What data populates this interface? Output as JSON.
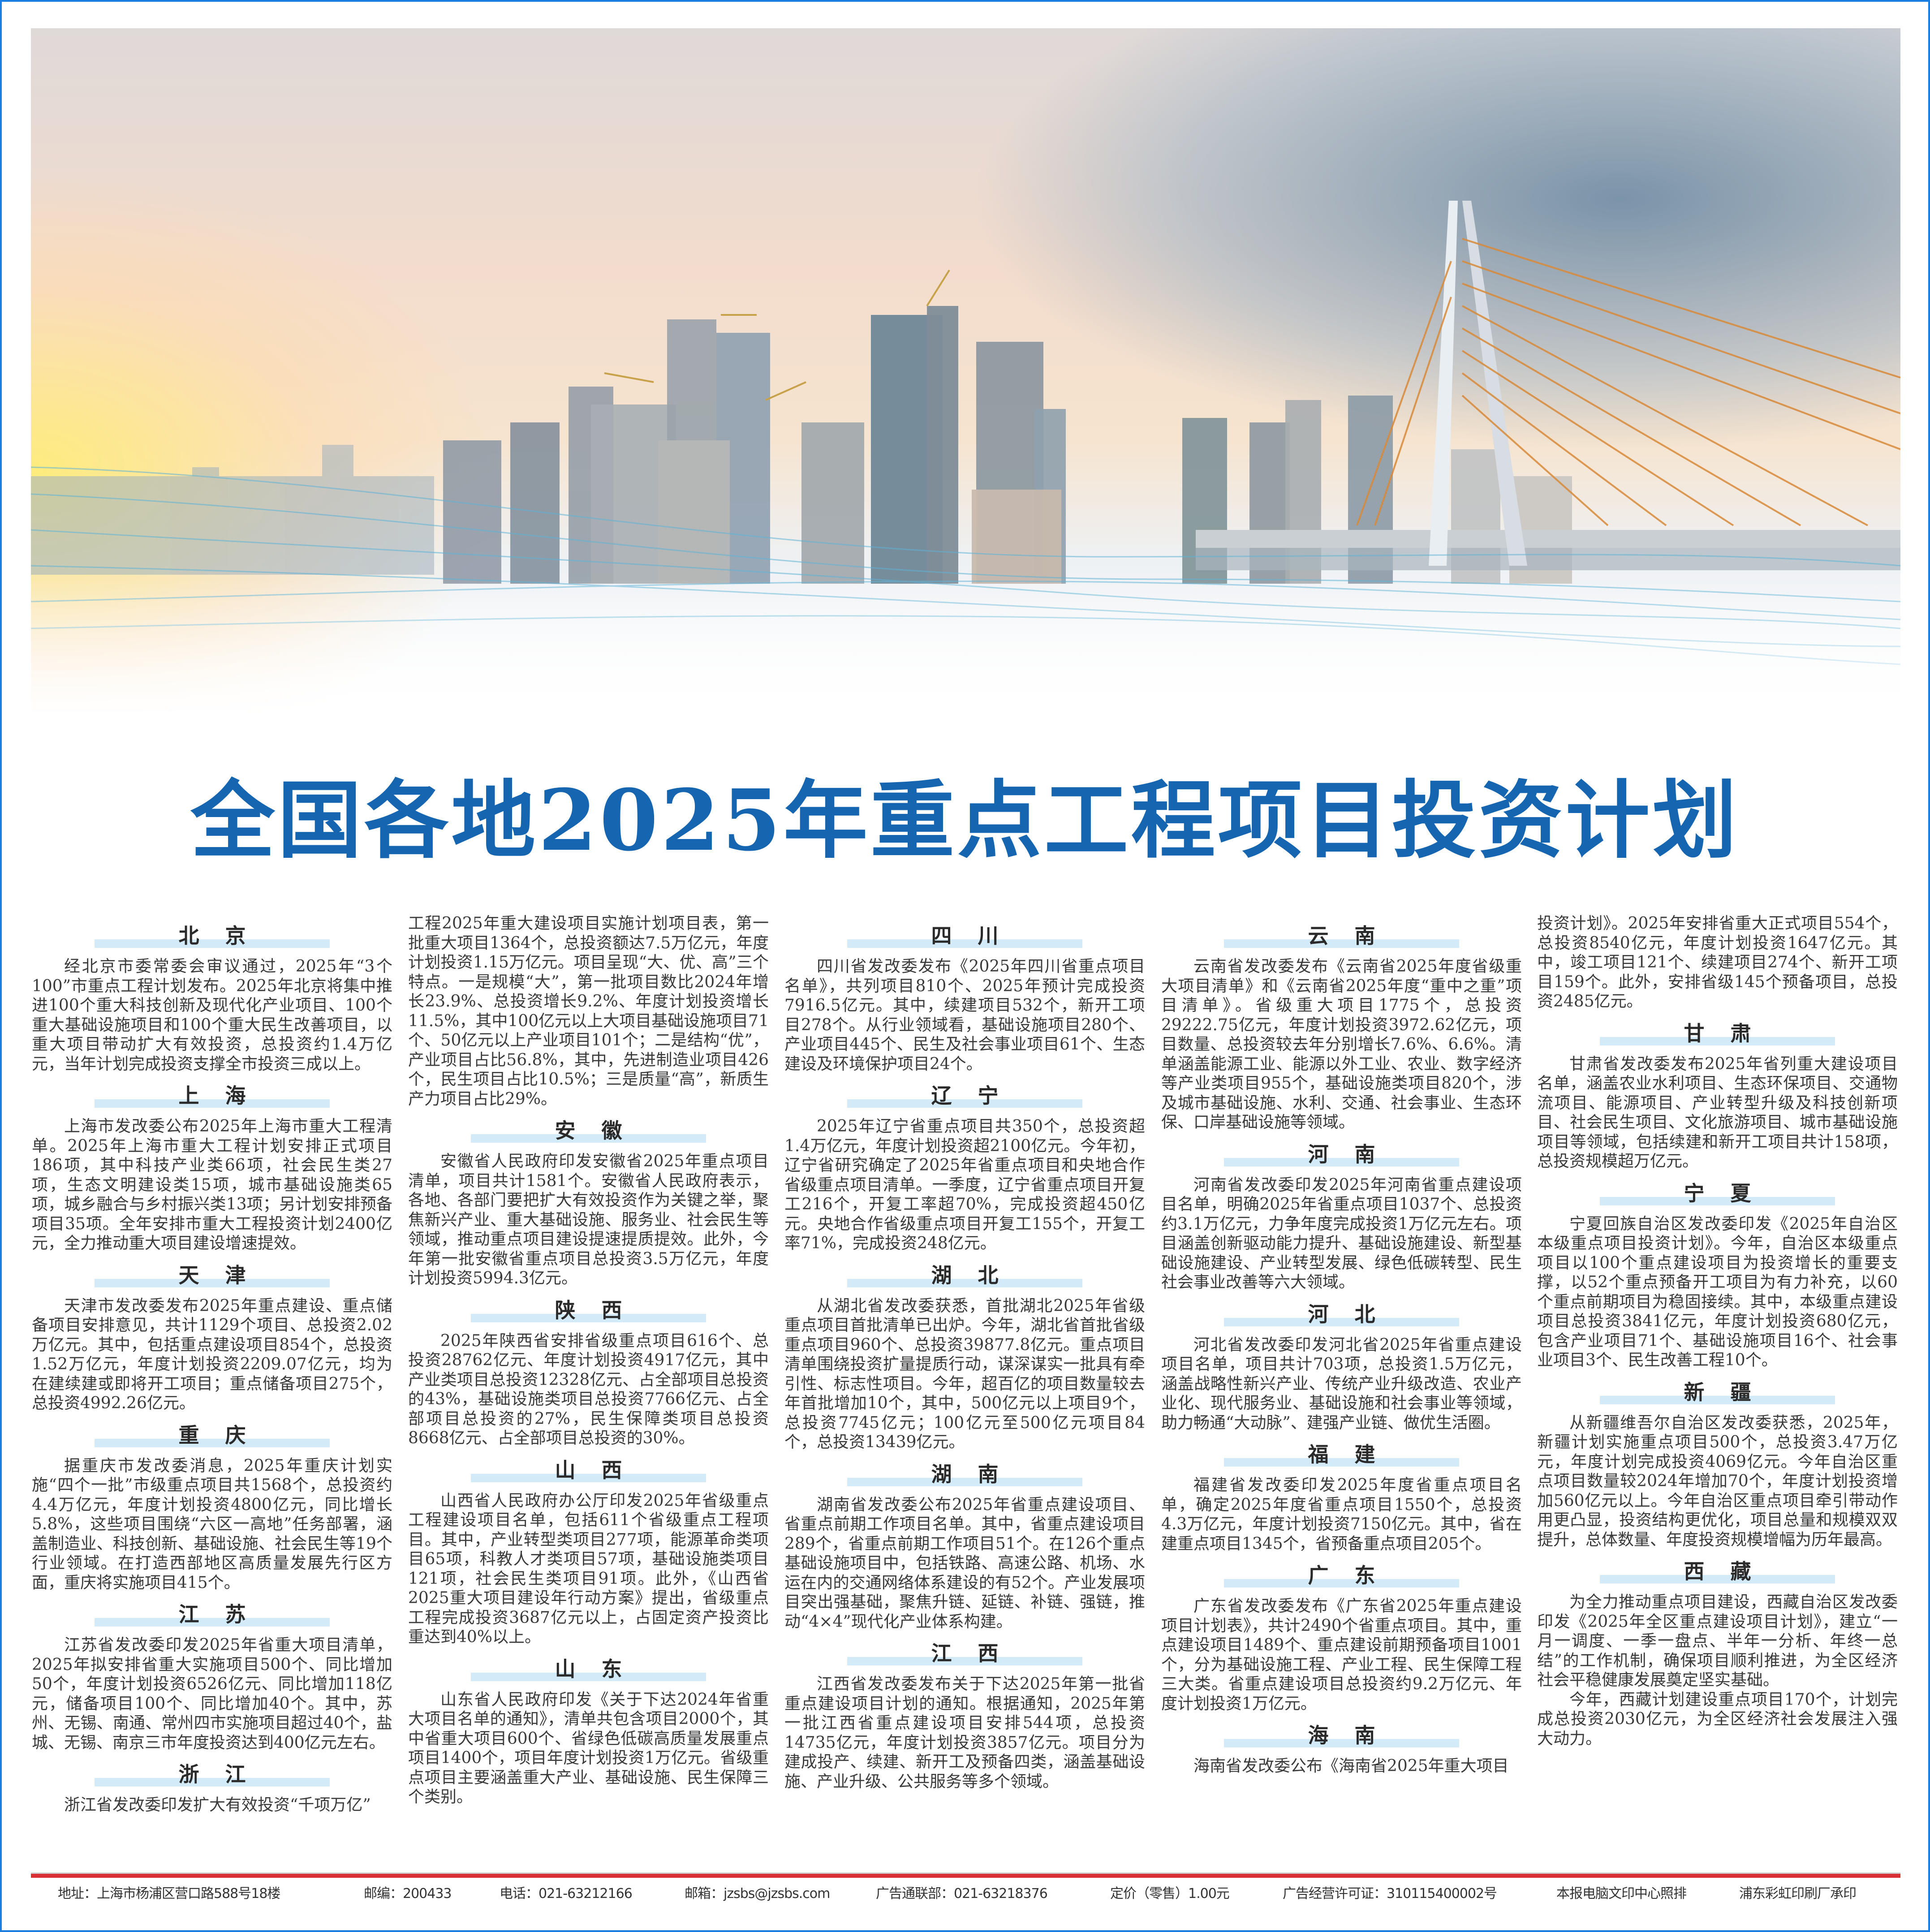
{
  "title": "全国各地2025年重点工程项目投资计划",
  "colors": {
    "title": "#1565b0",
    "heading_bar": "#d3ebf8",
    "footer_rule": "#d93035",
    "frame": "#1a7fe0"
  },
  "hero_image": "city-skyline-and-cable-stayed-bridge",
  "articles": [
    {
      "name": "北京",
      "body": [
        "经北京市委常委会审议通过，2025年“3个100”市重点工程计划发布。2025年北京将集中推进100个重大科技创新及现代化产业项目、100个重大基础设施项目和100个重大民生改善项目，以重大项目带动扩大有效投资，总投资约1.4万亿元，当年计划完成投资支撑全市投资三成以上。"
      ]
    },
    {
      "name": "上海",
      "body": [
        "上海市发改委公布2025年上海市重大工程清单。2025年上海市重大工程计划安排正式项目186项，其中科技产业类66项，社会民生类27项，生态文明建设类15项，城市基础设施类65项，城乡融合与乡村振兴类13项；另计划安排预备项目35项。全年安排市重大工程投资计划2400亿元，全力推动重大项目建设增速提效。"
      ]
    },
    {
      "name": "天津",
      "body": [
        "天津市发改委发布2025年重点建设、重点储备项目安排意见，共计1129个项目、总投资2.02万亿元。其中，包括重点建设项目854个，总投资1.52万亿元，年度计划投资2209.07亿元，均为在建续建或即将开工项目；重点储备项目275个，总投资4992.26亿元。"
      ]
    },
    {
      "name": "重庆",
      "body": [
        "据重庆市发改委消息，2025年重庆计划实施“四个一批”市级重点项目共1568个，总投资约4.4万亿元，年度计划投资4800亿元，同比增长5.8%，这些项目围绕“六区一高地”任务部署，涵盖制造业、科技创新、基础设施、社会民生等19个行业领域。在打造西部地区高质量发展先行区方面，重庆将实施项目415个。"
      ]
    },
    {
      "name": "江苏",
      "body": [
        "江苏省发改委印发2025年省重大项目清单，2025年拟安排省重大实施项目500个、同比增加50个，年度计划投资6526亿元、同比增加118亿元，储备项目100个、同比增加40个。其中，苏州、无锡、南通、常州四市实施项目超过40个，盐城、无锡、南京三市年度投资达到400亿元左右。"
      ]
    },
    {
      "name": "浙江",
      "body": [
        "浙江省发改委印发扩大有效投资“千项万亿”",
        "工程2025年重大建设项目实施计划项目表，第一批重大项目1364个，总投资额达7.5万亿元，年度计划投资1.15万亿元。项目呈现“大、优、高”三个特点。一是规模“大”，第一批项目数比2024年增长23.9%、总投资增长9.2%、年度计划投资增长11.5%，其中100亿元以上大项目基础设施项目71个、50亿元以上产业项目101个；二是结构“优”，产业项目占比56.8%，其中，先进制造业项目426个，民生项目占比10.5%；三是质量“高”，新质生产力项目占比29%。"
      ]
    },
    {
      "name": "安徽",
      "body": [
        "安徽省人民政府印发安徽省2025年重点项目清单，项目共计1581个。安徽省人民政府表示，各地、各部门要把扩大有效投资作为关键之举，聚焦新兴产业、重大基础设施、服务业、社会民生等领域，推动重点项目建设提速提质提效。此外，今年第一批安徽省重点项目总投资3.5万亿元，年度计划投资5994.3亿元。"
      ]
    },
    {
      "name": "陕西",
      "body": [
        "2025年陕西省安排省级重点项目616个、总投资28762亿元、年度计划投资4917亿元，其中产业类项目总投资12328亿元、占全部项目总投资的43%，基础设施类项目总投资7766亿元、占全部项目总投资的27%，民生保障类项目总投资8668亿元、占全部项目总投资的30%。"
      ]
    },
    {
      "name": "山西",
      "body": [
        "山西省人民政府办公厅印发2025年省级重点工程建设项目名单，包括611个省级重点工程项目。其中，产业转型类项目277项，能源革命类项目65项，科教人才类项目57项，基础设施类项目121项，社会民生类项目91项。此外，《山西省2025重大项目建设年行动方案》提出，省级重点工程完成投资3687亿元以上，占固定资产投资比重达到40%以上。"
      ]
    },
    {
      "name": "山东",
      "body": [
        "山东省人民政府印发《关于下达2024年省重大项目名单的通知》，清单共包含项目2000个，其中省重大项目600个、省绿色低碳高质量发展重点项目1400个，项目年度计划投资1万亿元。省级重点项目主要涵盖重大产业、基础设施、民生保障三个类别。"
      ]
    },
    {
      "name": "四川",
      "body": [
        "四川省发改委发布《2025年四川省重点项目名单》，共列项目810个、2025年预计完成投资7916.5亿元。其中，续建项目532个，新开工项目278个。从行业领域看，基础设施项目280个、产业项目445个、民生及社会事业项目61个、生态建设及环境保护项目24个。"
      ]
    },
    {
      "name": "辽宁",
      "body": [
        "2025年辽宁省重点项目共350个，总投资超1.4万亿元，年度计划投资超2100亿元。今年初，辽宁省研究确定了2025年省重点项目和央地合作省级重点项目清单。一季度，辽宁省重点项目开复工216个，开复工率超70%，完成投资超450亿元。央地合作省级重点项目开复工155个，开复工率71%，完成投资248亿元。"
      ]
    },
    {
      "name": "湖北",
      "body": [
        "从湖北省发改委获悉，首批湖北2025年省级重点项目首批清单已出炉。今年，湖北省首批省级重点项目960个、总投资39877.8亿元。重点项目清单围绕投资扩量提质行动，谋深谋实一批具有牵引性、标志性项目。今年，超百亿的项目数量较去年首批增加10个，其中，500亿元以上项目9个，总投资7745亿元；100亿元至500亿元项目84个，总投资13439亿元。"
      ]
    },
    {
      "name": "湖南",
      "body": [
        "湖南省发改委公布2025年省重点建设项目、省重点前期工作项目名单。其中，省重点建设项目289个，省重点前期工作项目51个。在126个重点基础设施项目中，包括铁路、高速公路、机场、水运在内的交通网络体系建设的有52个。产业发展项目突出强基础，聚焦升链、延链、补链、强链，推动“4×4”现代化产业体系构建。"
      ]
    },
    {
      "name": "江西",
      "body": [
        "江西省发改委发布关于下达2025年第一批省重点建设项目计划的通知。根据通知，2025年第一批江西省重点建设项目安排544项，总投资14735亿元，年度计划投资3857亿元。项目分为建成投产、续建、新开工及预备四类，涵盖基础设施、产业升级、公共服务等多个领域。"
      ]
    },
    {
      "name": "云南",
      "body": [
        "云南省发改委发布《云南省2025年度省级重大项目清单》和《云南省2025年度“重中之重”项目清单》。省级重大项目1775个，总投资29222.75亿元，年度计划投资3972.62亿元，项目数量、总投资较去年分别增长7.6%、6.6%。清单涵盖能源工业、能源以外工业、农业、数字经济等产业类项目955个，基础设施类项目820个，涉及城市基础设施、水利、交通、社会事业、生态环保、口岸基础设施等领域。"
      ]
    },
    {
      "name": "河南",
      "body": [
        "河南省发改委印发2025年河南省重点建设项目名单，明确2025年省重点项目1037个、总投资约3.1万亿元，力争年度完成投资1万亿元左右。项目涵盖创新驱动能力提升、基础设施建设、新型基础设施建设、产业转型发展、绿色低碳转型、民生社会事业改善等六大领域。"
      ]
    },
    {
      "name": "河北",
      "body": [
        "河北省发改委印发河北省2025年省重点建设项目名单，项目共计703项，总投资1.5万亿元，涵盖战略性新兴产业、传统产业升级改造、农业产业化、现代服务业、基础设施和社会事业等领域，助力畅通“大动脉”、建强产业链、做优生活圈。"
      ]
    },
    {
      "name": "福建",
      "body": [
        "福建省发改委印发2025年度省重点项目名单，确定2025年度省重点项目1550个，总投资4.3万亿元，年度计划投资7150亿元。其中，省在建重点项目1345个，省预备重点项目205个。"
      ]
    },
    {
      "name": "广东",
      "body": [
        "广东省发改委发布《广东省2025年重点建设项目计划表》，共计2490个省重点项目。其中，重点建设项目1489个、重点建设前期预备项目1001个，分为基础设施工程、产业工程、民生保障工程三大类。省重点建设项目总投资约9.2万亿元、年度计划投资1万亿元。"
      ]
    },
    {
      "name": "海南",
      "body": [
        "海南省发改委公布《海南省2025年重大项目",
        "投资计划》。2025年安排省重大正式项目554个，总投资8540亿元，年度计划投资1647亿元。其中，竣工项目121个、续建项目274个、新开工项目159个。此外，安排省级145个预备项目，总投资2485亿元。"
      ]
    },
    {
      "name": "甘肃",
      "body": [
        "甘肃省发改委发布2025年省列重大建设项目名单，涵盖农业水利项目、生态环保项目、交通物流项目、能源项目、产业转型升级及科技创新项目、社会民生项目、文化旅游项目、城市基础设施项目等领域，包括续建和新开工项目共计158项，总投资规模超万亿元。"
      ]
    },
    {
      "name": "宁夏",
      "body": [
        "宁夏回族自治区发改委印发《2025年自治区本级重点项目投资计划》。今年，自治区本级重点项目以100个重点建设项目为投资增长的重要支撑，以52个重点预备开工项目为有力补充，以60个重点前期项目为稳固接续。其中，本级重点建设项目总投资3841亿元，年度计划投资680亿元，包含产业项目71个、基础设施项目16个、社会事业项目3个、民生改善工程10个。"
      ]
    },
    {
      "name": "新疆",
      "body": [
        "从新疆维吾尔自治区发改委获悉，2025年，新疆计划实施重点项目500个，总投资3.47万亿元，年度计划完成投资4069亿元。今年自治区重点项目数量较2024年增加70个，年度计划投资增加560亿元以上。今年自治区重点项目牵引带动作用更凸显，投资结构更优化，项目总量和规模双双提升，总体数量、年度投资规模增幅为历年最高。"
      ]
    },
    {
      "name": "西藏",
      "body": [
        "为全力推动重点项目建设，西藏自治区发改委印发《2025年全区重点建设项目计划》，建立“一月一调度、一季一盘点、半年一分析、年终一总结”的工作机制，确保项目顺利推进，为全区经济社会平稳健康发展奠定坚实基础。",
        "今年，西藏计划建设重点项目170个，计划完成总投资2030亿元，为全区经济社会发展注入强大动力。"
      ]
    }
  ],
  "footer": {
    "address": "地址：上海市杨浦区营口路588号18楼",
    "postcode": "邮编：200433",
    "phone": "电话：021-63212166",
    "email": "邮箱：jzsbs@jzsbs.com",
    "ad_contact": "广告通联部：021-63218376",
    "price": "定价（零售）1.00元",
    "ad_license": "广告经营许可证：310115400002号",
    "typesetting": "本报电脑文印中心照排",
    "printer": "浦东彩虹印刷厂承印"
  }
}
